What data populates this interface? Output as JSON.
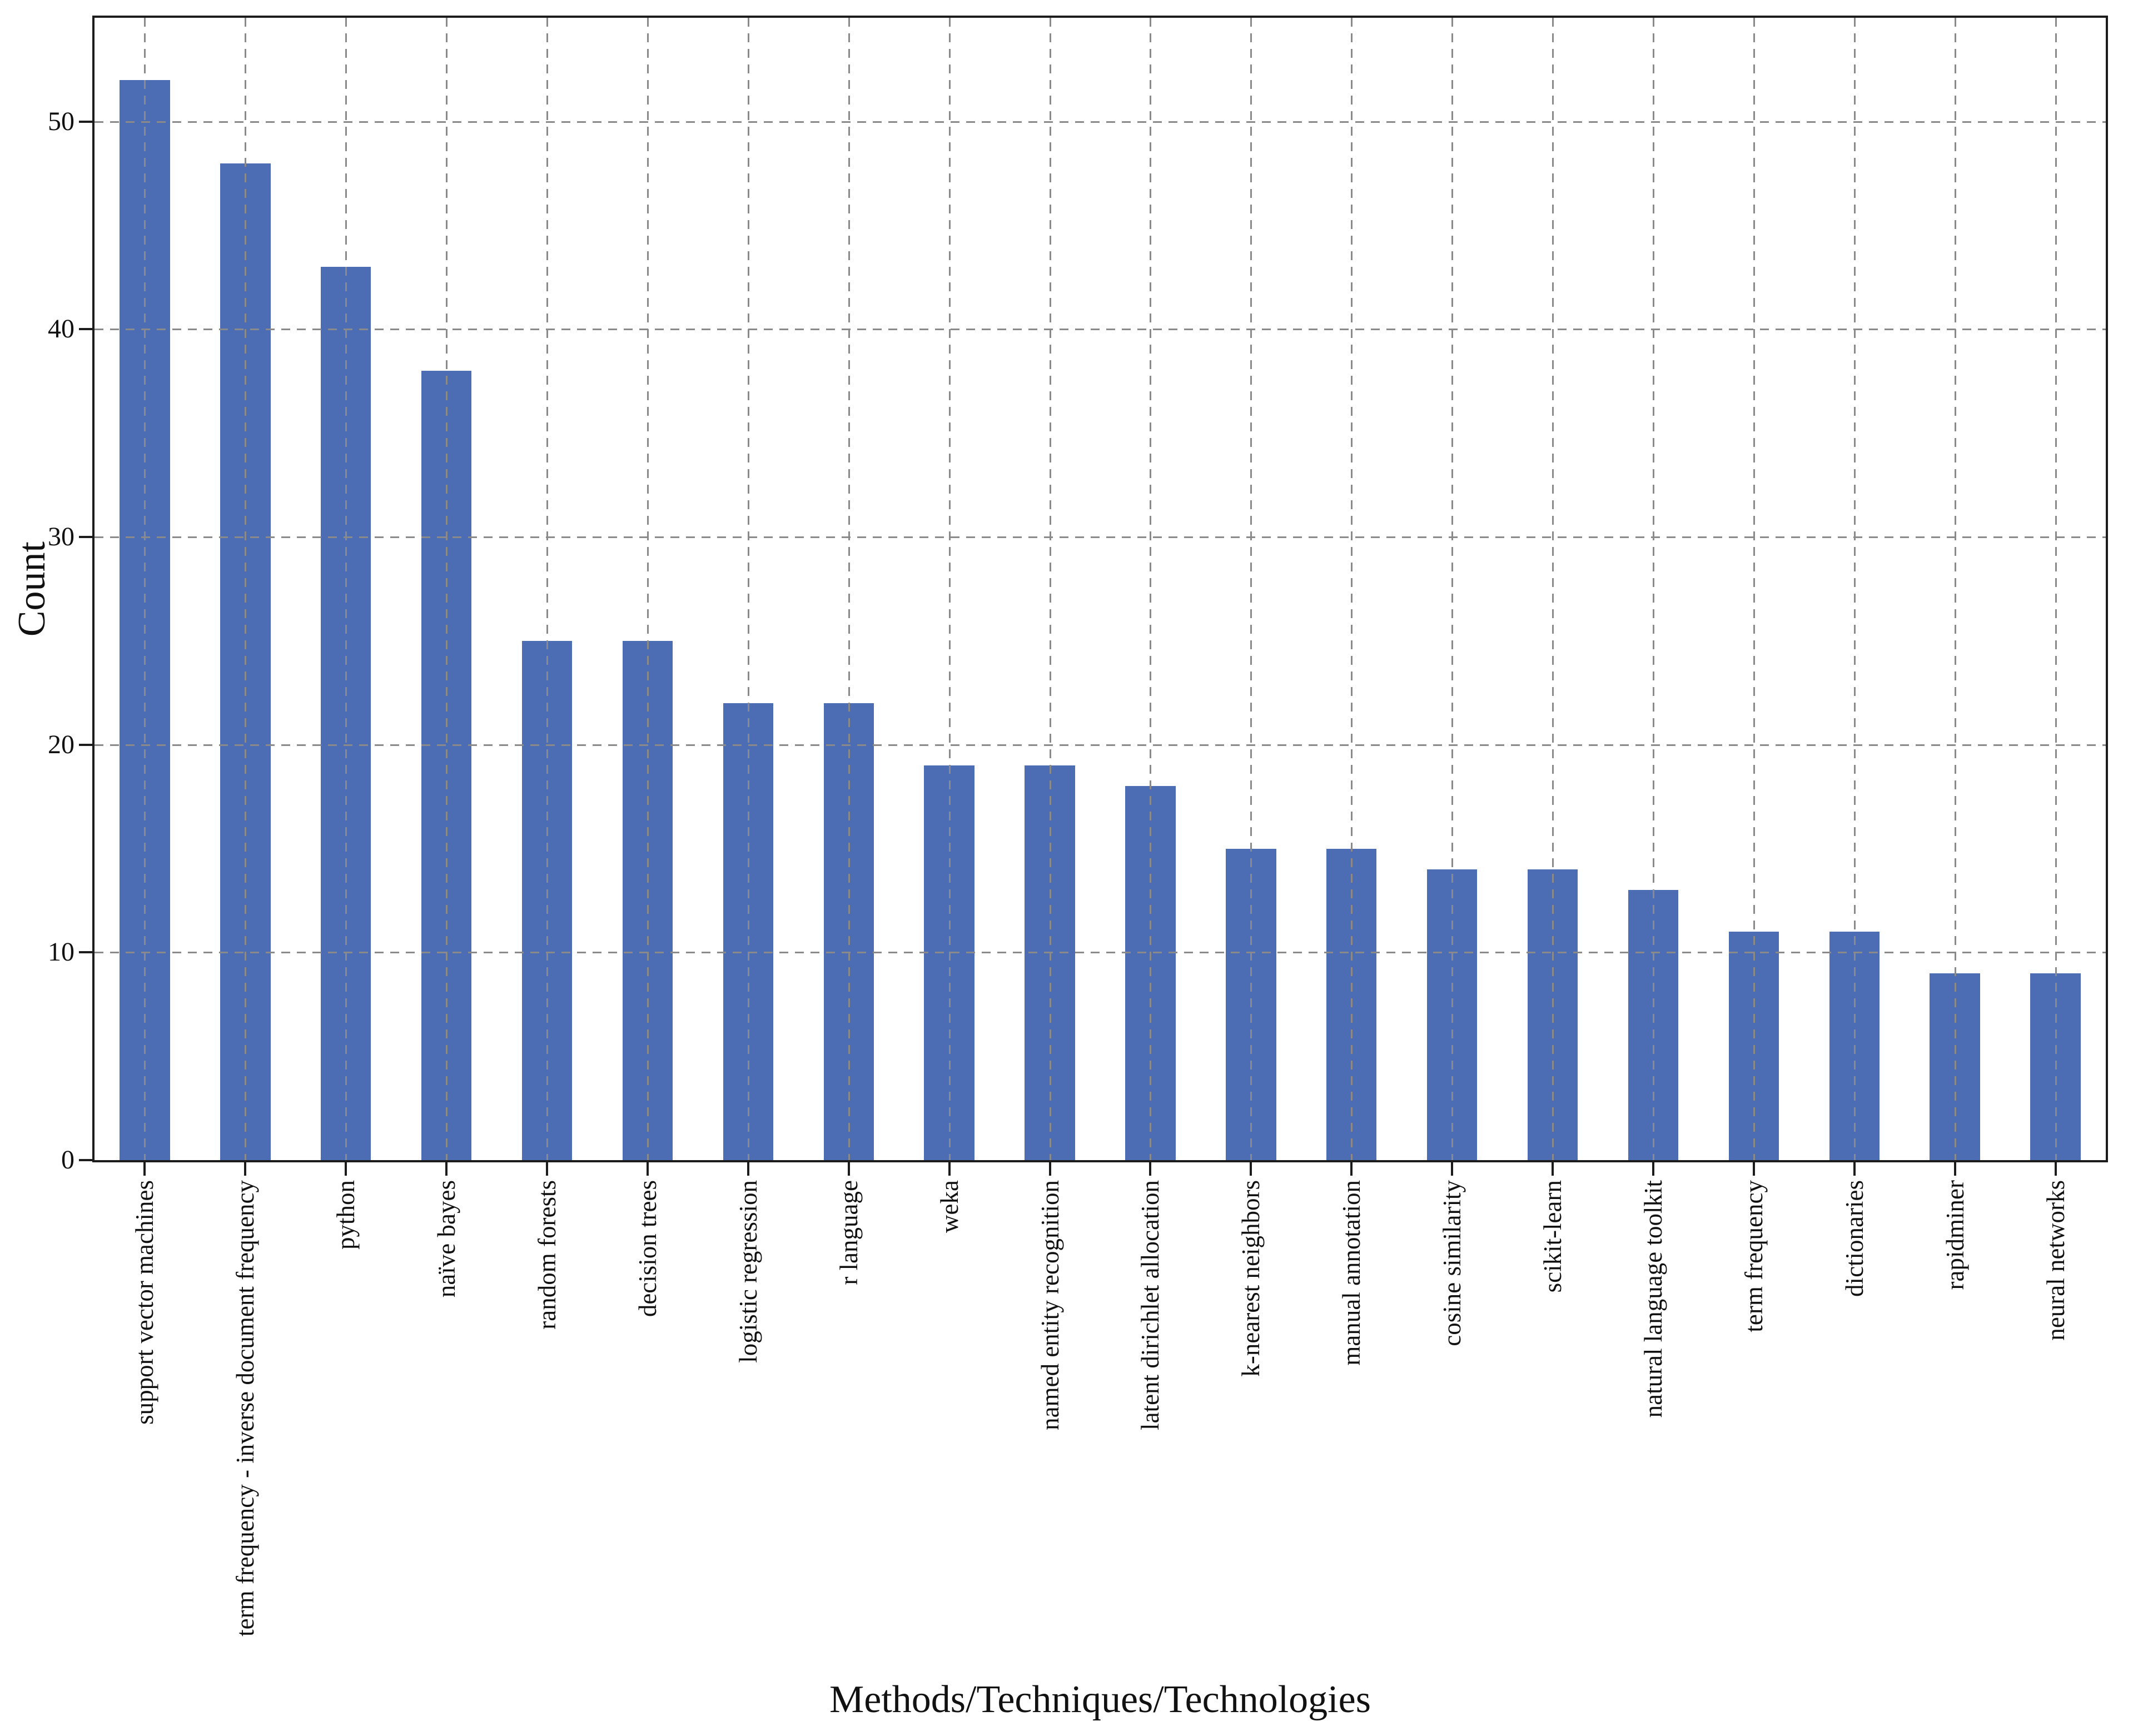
{
  "chart_data": {
    "type": "bar",
    "title": "",
    "xlabel": "Methods/Techniques/Technologies",
    "ylabel": "Count",
    "categories": [
      "support vector machines",
      "term frequency - inverse document frequency",
      "python",
      "naïve bayes",
      "random forests",
      "decision trees",
      "logistic regression",
      "r language",
      "weka",
      "named entity recognition",
      "latent dirichlet allocation",
      "k-nearest neighbors",
      "manual annotation",
      "cosine similarity",
      "scikit-learn",
      "natural language toolkit",
      "term frequency",
      "dictionaries",
      "rapidminer",
      "neural networks"
    ],
    "values": [
      52,
      48,
      43,
      38,
      25,
      25,
      22,
      22,
      19,
      19,
      18,
      15,
      15,
      14,
      14,
      13,
      11,
      11,
      9,
      9
    ],
    "ylim": [
      0,
      55
    ],
    "yticks": [
      0,
      10,
      20,
      30,
      40,
      50
    ],
    "grid": {
      "horizontal": true,
      "vertical": true,
      "style": "dashed",
      "color": "#8a8a8a",
      "drawn_over_bars": true
    },
    "bar_color": "#4C6DB3",
    "bar_width_fraction": 0.5,
    "legend_position": "none"
  }
}
